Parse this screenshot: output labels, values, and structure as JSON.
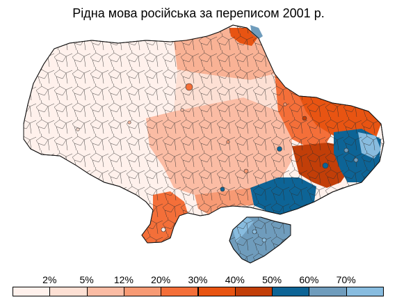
{
  "title": "Рідна мова російська за переписом 2001 р.",
  "legend": {
    "ticks": [
      "2%",
      "5%",
      "12%",
      "20%",
      "30%",
      "40%",
      "50%",
      "60%",
      "70%"
    ],
    "colors": [
      "#fff1ec",
      "#fde0d4",
      "#fbbca4",
      "#f79a74",
      "#f46f39",
      "#e85412",
      "#c23e08",
      "#0d6496",
      "#6f9cbc",
      "#88bcdf"
    ]
  }
}
